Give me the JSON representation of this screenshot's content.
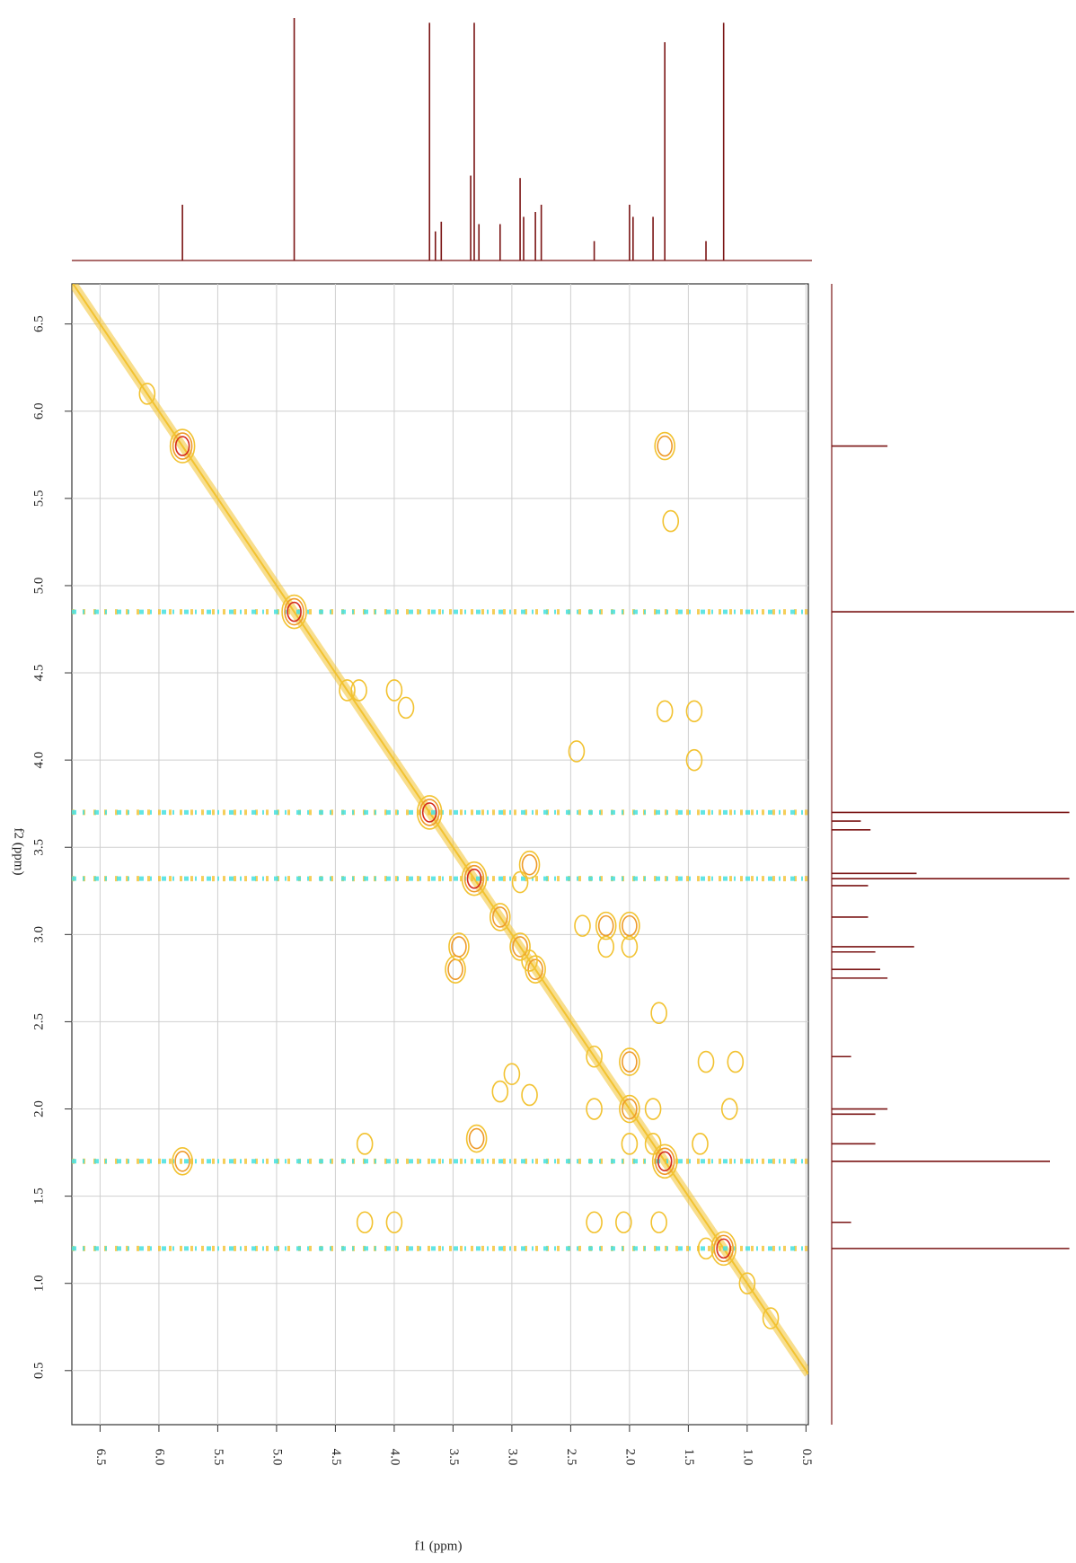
{
  "chart_data": {
    "type": "contour",
    "xlabel": "f1 (ppm)",
    "ylabel": "f2 (ppm)",
    "xlim": [
      6.74,
      0.48
    ],
    "ylim": [
      6.73,
      0.19
    ],
    "xticks": [
      6.5,
      {
        "value": 6,
        "label": "6.0"
      },
      5.5,
      {
        "value": 5,
        "label": "5.0"
      },
      4.5,
      {
        "value": 4,
        "label": "4.0"
      },
      3.5,
      {
        "value": 3,
        "label": "3.0"
      },
      2.5,
      {
        "value": 2,
        "label": "2.0"
      },
      1.5,
      {
        "value": 1,
        "label": "1.0"
      },
      0.5
    ],
    "yticks": [
      6.5,
      {
        "value": 6,
        "label": "6.0"
      },
      5.5,
      {
        "value": 5,
        "label": "5.0"
      },
      4.5,
      {
        "value": 4,
        "label": "4.0"
      },
      3.5,
      {
        "value": 3,
        "label": "3.0"
      },
      2.5,
      {
        "value": 2,
        "label": "2.0"
      },
      1.5,
      {
        "value": 1,
        "label": "1.0"
      },
      0.5
    ],
    "grid": true,
    "contour_colors": [
      "#f2c230",
      "#ee9a2a",
      "#d42a1e"
    ],
    "diagonal_color": "#f2c230",
    "x": [
      6.1,
      5.8,
      4.85,
      4.4,
      3.7,
      3.32,
      3.1,
      2.93,
      2.8,
      2.3,
      2.0,
      1.8,
      1.7,
      1.2,
      1.0,
      0.8,
      1.7,
      1.65,
      1.7,
      1.45,
      1.45,
      4.3,
      4.0,
      3.9,
      5.8,
      3.3,
      4.25,
      2.85,
      2.93,
      3.48,
      3.45,
      2.85,
      2.4,
      2.2,
      2.0,
      2.2,
      2.0,
      1.35,
      1.75,
      2.0,
      2.3,
      2.0,
      1.8,
      2.3,
      2.05,
      1.75,
      1.35,
      1.4,
      1.1,
      1.15,
      2.45,
      3.0,
      3.1,
      2.85,
      4.0,
      4.25
    ],
    "y": [
      6.1,
      5.8,
      4.85,
      4.4,
      3.7,
      3.32,
      3.1,
      2.93,
      2.8,
      2.3,
      2.0,
      1.8,
      1.7,
      1.2,
      1.0,
      0.8,
      5.8,
      5.37,
      4.28,
      4.28,
      4.0,
      4.4,
      4.4,
      4.3,
      1.7,
      1.83,
      1.8,
      3.4,
      3.3,
      2.8,
      2.93,
      2.85,
      3.05,
      3.05,
      3.05,
      2.93,
      2.93,
      2.27,
      2.55,
      2.27,
      2.0,
      1.8,
      2.0,
      1.35,
      1.35,
      1.35,
      1.2,
      1.8,
      2.27,
      2.0,
      4.05,
      2.2,
      2.1,
      2.08,
      1.35,
      1.35
    ],
    "levels": [
      1,
      3,
      3,
      1,
      3,
      3,
      2,
      2,
      2,
      1,
      2,
      1,
      3,
      3,
      1,
      1,
      2,
      1,
      1,
      1,
      1,
      1,
      1,
      1,
      2,
      2,
      1,
      2,
      1,
      2,
      2,
      1,
      1,
      2,
      2,
      1,
      1,
      1,
      1,
      2,
      1,
      1,
      1,
      1,
      1,
      1,
      1,
      1,
      1,
      1,
      1,
      1,
      1,
      1,
      1,
      1
    ],
    "t1_noise": {
      "color": "#45e0e0",
      "y": [
        4.85,
        3.7,
        3.32,
        1.7,
        1.2
      ]
    },
    "projection": {
      "color": "#7a1414",
      "x": [
        5.8,
        4.85,
        3.7,
        3.65,
        3.6,
        3.35,
        3.32,
        3.28,
        3.1,
        2.93,
        2.9,
        2.8,
        2.75,
        2.3,
        2.0,
        1.97,
        1.8,
        1.7,
        1.35,
        1.2
      ],
      "values": [
        0.23,
        1.0,
        0.98,
        0.12,
        0.16,
        0.35,
        0.98,
        0.15,
        0.15,
        0.34,
        0.18,
        0.2,
        0.23,
        0.08,
        0.23,
        0.18,
        0.18,
        0.9,
        0.08,
        0.98
      ]
    }
  }
}
